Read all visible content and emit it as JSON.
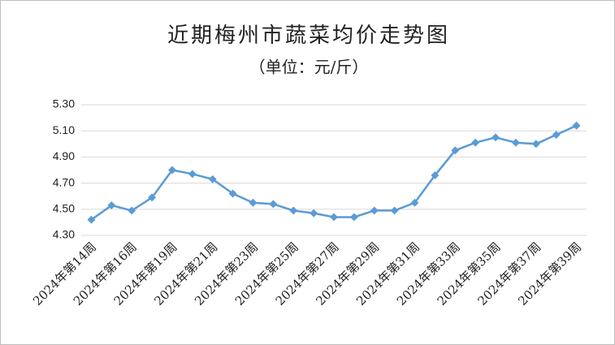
{
  "chart_data": {
    "type": "line",
    "title": "近期梅州市蔬菜均价走势图",
    "subtitle": "（单位：元/斤）",
    "categories": [
      "2024年第14周",
      null,
      "2024年第16周",
      null,
      "2024年第19周",
      null,
      "2024年第21周",
      null,
      "2024年第23周",
      null,
      "2024年第25周",
      null,
      "2024年第27周",
      null,
      "2024年第29周",
      null,
      "2024年第31周",
      null,
      "2024年第33周",
      null,
      "2024年第35周",
      null,
      "2024年第37周",
      null,
      "2024年第39周"
    ],
    "values": [
      4.42,
      4.53,
      4.49,
      4.59,
      4.8,
      4.77,
      4.73,
      4.62,
      4.55,
      4.54,
      4.49,
      4.47,
      4.44,
      4.44,
      4.49,
      4.49,
      4.55,
      4.76,
      4.95,
      5.01,
      5.05,
      5.01,
      5.0,
      5.07,
      5.14
    ],
    "color": "#5b9bd5",
    "ylim": [
      4.3,
      5.3
    ],
    "yticks": [
      {
        "value": 4.3,
        "label": "4.30"
      },
      {
        "value": 4.5,
        "label": "4.50"
      },
      {
        "value": 4.7,
        "label": "4.70"
      },
      {
        "value": 4.9,
        "label": "4.90"
      },
      {
        "value": 5.1,
        "label": "5.10"
      },
      {
        "value": 5.3,
        "label": "5.30"
      }
    ],
    "grid": true
  }
}
